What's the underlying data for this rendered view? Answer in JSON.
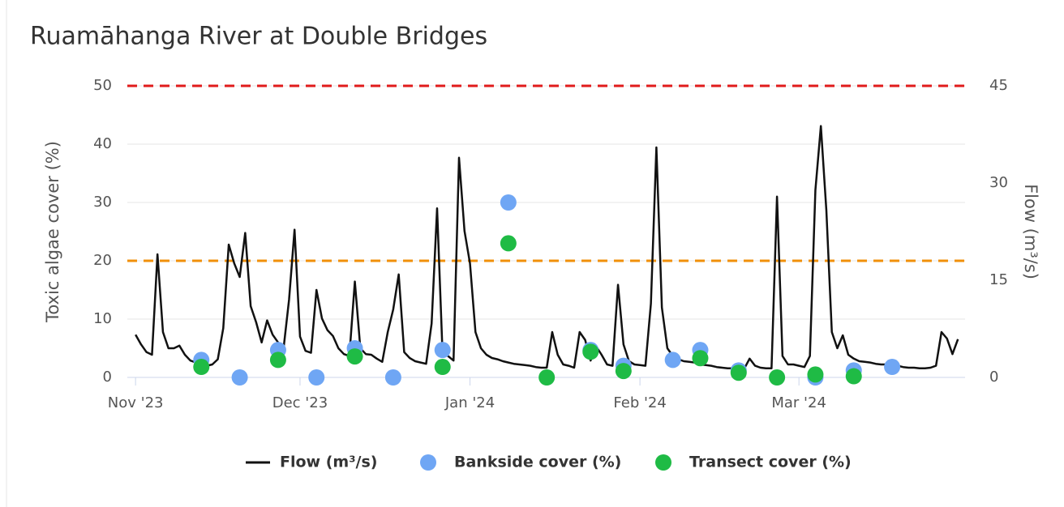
{
  "chart_data": {
    "type": "combo",
    "title": "Ruamāhanga River at Double Bridges",
    "y_label": "Toxic algae cover (%)",
    "y2_label": "Flow (m³/s)",
    "xlim": [
      -1.5,
      151.3
    ],
    "xticks": [
      {
        "value": 0,
        "label": "Nov '23"
      },
      {
        "value": 30,
        "label": "Dec '23"
      },
      {
        "value": 61,
        "label": "Jan '24"
      },
      {
        "value": 92,
        "label": "Feb '24"
      },
      {
        "value": 121,
        "label": "Mar '24"
      }
    ],
    "ylim": [
      0,
      50
    ],
    "yticks": [
      0,
      10,
      20,
      30,
      40,
      50
    ],
    "y2lim": [
      0,
      45
    ],
    "y2ticks": [
      0,
      15,
      30,
      45
    ],
    "grid": true,
    "thresholds": [
      {
        "value": 20,
        "color": "#f0900a"
      },
      {
        "value": 50,
        "color": "#e01b1b"
      }
    ],
    "series": [
      {
        "name": "Flow (m³/s)",
        "type": "line",
        "axis": "y2",
        "color": "#111111",
        "x": [
          0,
          1,
          2,
          3,
          4,
          5,
          6,
          7,
          8,
          9,
          10,
          11,
          12,
          13,
          14,
          15,
          16,
          17,
          18,
          19,
          20,
          21,
          22,
          23,
          24,
          25,
          26,
          27,
          28,
          29,
          30,
          31,
          32,
          33,
          34,
          35,
          36,
          37,
          38,
          39,
          40,
          41,
          42,
          43,
          44,
          45,
          46,
          47,
          48,
          49,
          50,
          51,
          52,
          53,
          54,
          55,
          56,
          57,
          58,
          59,
          60,
          61,
          62,
          63,
          64,
          65,
          66,
          67,
          68,
          69,
          70,
          71,
          72,
          73,
          74,
          75,
          76,
          77,
          78,
          79,
          80,
          81,
          82,
          83,
          84,
          85,
          86,
          87,
          88,
          89,
          90,
          91,
          92,
          93,
          94,
          95,
          96,
          97,
          98,
          99,
          100,
          101,
          102,
          103,
          104,
          105,
          106,
          107,
          108,
          109,
          110,
          111,
          112,
          113,
          114,
          115,
          116,
          117,
          118,
          119,
          120,
          121,
          122,
          123,
          124,
          125,
          126,
          127,
          128,
          129,
          130,
          131,
          132,
          133,
          134,
          135,
          136,
          137,
          138,
          139,
          140,
          141,
          142,
          143,
          144,
          145,
          146,
          147,
          148,
          149,
          150
        ],
        "values": [
          6.6,
          5.1,
          3.9,
          3.5,
          19,
          7,
          4.5,
          4.5,
          4.9,
          3.5,
          2.6,
          2.3,
          2.0,
          1.8,
          2.0,
          2.8,
          7.6,
          20.5,
          17.6,
          15.5,
          22.3,
          11,
          8.5,
          5.4,
          8.8,
          6.6,
          5.4,
          4.5,
          12,
          22.8,
          6.3,
          4.1,
          3.8,
          13.5,
          9.1,
          7.3,
          6.4,
          4.5,
          3.6,
          3.3,
          14.8,
          4.5,
          3.6,
          3.5,
          2.9,
          2.4,
          7,
          10.5,
          15.9,
          3.9,
          3,
          2.5,
          2.3,
          2.1,
          8.3,
          26.1,
          3.6,
          3.3,
          2.6,
          33.9,
          22.6,
          17.6,
          7,
          4.5,
          3.5,
          3,
          2.8,
          2.5,
          2.3,
          2.1,
          2.0,
          1.9,
          1.8,
          1.6,
          1.5,
          1.5,
          7,
          3.5,
          2,
          1.8,
          1.5,
          7,
          5.8,
          2.6,
          4.8,
          3.5,
          2,
          1.8,
          14.3,
          5.1,
          2.5,
          2,
          1.9,
          1.8,
          11.4,
          35.5,
          10.8,
          4.5,
          3.3,
          2.8,
          2.5,
          2.4,
          2.3,
          2,
          1.9,
          1.8,
          1.6,
          1.5,
          1.4,
          1.4,
          1.3,
          1.3,
          2.9,
          1.8,
          1.5,
          1.4,
          1.4,
          27.9,
          3.3,
          2,
          2,
          1.8,
          1.6,
          3.3,
          28.9,
          38.8,
          25.8,
          7,
          4.5,
          6.5,
          3.5,
          2.9,
          2.5,
          2.4,
          2.3,
          2.1,
          2,
          2,
          1.9,
          1.8,
          1.6,
          1.5,
          1.5,
          1.4,
          1.4,
          1.5,
          1.8,
          7,
          6,
          3.6,
          5.9
        ]
      },
      {
        "name": "Bankside cover (%)",
        "type": "scatter",
        "color": "#6fa6f4",
        "x": [
          12,
          19,
          26,
          33,
          40,
          47,
          56,
          68,
          83,
          89,
          98,
          103,
          110,
          124,
          131,
          138
        ],
        "values": [
          3,
          0,
          4.7,
          0,
          5,
          0,
          4.7,
          30,
          4.7,
          2,
          3,
          4.7,
          1.2,
          0,
          1.2,
          1.8
        ]
      },
      {
        "name": "Transect cover (%)",
        "type": "scatter",
        "color": "#1fbb45",
        "x": [
          12,
          26,
          40,
          56,
          68,
          75,
          83,
          89,
          103,
          110,
          117,
          124,
          131
        ],
        "values": [
          1.8,
          3,
          3.6,
          1.8,
          23,
          0,
          4.4,
          1.1,
          3.3,
          0.8,
          0,
          0.5,
          0.2
        ]
      }
    ]
  }
}
